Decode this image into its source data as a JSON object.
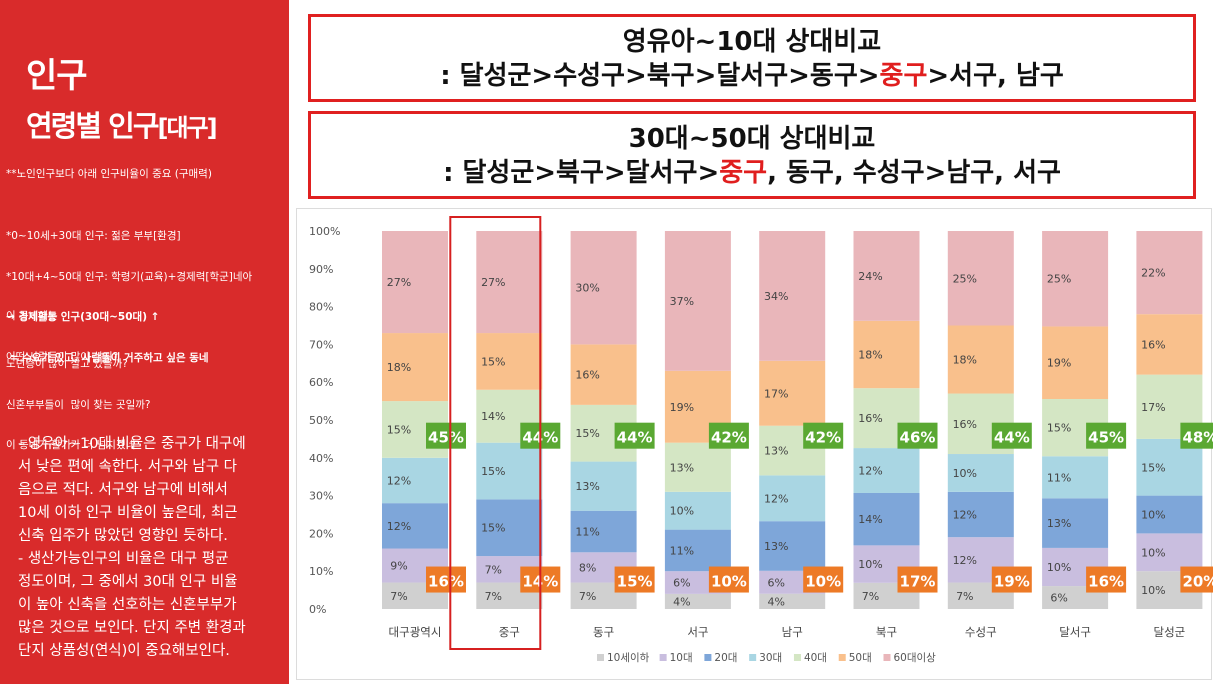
{
  "left_panel": {
    "title": "인구",
    "subtitle": "연령별 인구",
    "subtitle_bracket": "[대구]",
    "note_main": "**노인인구보다 아래 인구비율이 중요 (구매력)",
    "note_group1": [
      "*0~10세+30대 인구: 젊은 부부[환경]",
      "*10대+4~50대 인구: 학령기(교육)+경제력[학군]네아",
      "→ 경제활동 인구(30대~50대) ↑",
      " = 수요가 있고, 사람들이 거주하고 싶은 동네"
    ],
    "note_group2": [
      "이 동네에는",
      "어떤 사람들이 많이 살지?"
    ],
    "note_group3": [
      "노년층이 많이 살고 있을까?",
      "신혼부부들이  많이 찾는 곳일까?",
      "이 동네가 활기가 더 넘치겠네"
    ],
    "summary": [
      " - 영유아~10대 비율은 중구가 대구에",
      "서 낮은 편에 속한다. 서구와 남구 다",
      "음으로 적다. 서구와 남구에 비해서",
      "10세 이하 인구 비율이 높은데, 최근",
      "신축 입주가 많았던 영향인 듯하다.",
      " - 생산가능인구의 비율은 대구 평균",
      "정도이며, 그 중에서 30대 인구 비율",
      "이 높아 신축을 선호하는 신혼부부가",
      "많은 것으로 보인다. 단지 주변 환경과",
      "단지 상품성(연식)이 중요해보인다."
    ]
  },
  "comparisons": [
    {
      "line1": "영유아~10대 상대비교",
      "line2_before": ": 달성군>수성구>북구>달서구>동구>",
      "line2_highlight": "중구",
      "line2_after": ">서구, 남구"
    },
    {
      "line1": "30대~50대 상대비교",
      "line2_before": ": 달성군>북구>달서구>",
      "line2_highlight": "중구",
      "line2_after": ", 동구, 수성구>남구, 서구"
    }
  ],
  "colors": {
    "panel_red": "#d92b2b",
    "highlight_red": "#e01e1e",
    "badge_green": "#5aa832",
    "badge_orange": "#ed7a26"
  },
  "chart_data": {
    "type": "bar",
    "stacked": true,
    "normalized": true,
    "categories": [
      "대구광역시",
      "중구",
      "동구",
      "서구",
      "남구",
      "북구",
      "수성구",
      "달서구",
      "달성군"
    ],
    "series": [
      {
        "name": "10세이하",
        "color": "#d0d0d0",
        "values": [
          7,
          7,
          7,
          4,
          4,
          7,
          7,
          6,
          10
        ]
      },
      {
        "name": "10대",
        "color": "#c9bedf",
        "values": [
          9,
          7,
          8,
          6,
          6,
          10,
          12,
          10,
          10
        ]
      },
      {
        "name": "20대",
        "color": "#7ea6d9",
        "values": [
          12,
          15,
          11,
          11,
          13,
          14,
          12,
          13,
          10
        ]
      },
      {
        "name": "30대",
        "color": "#a9d6e3",
        "values": [
          12,
          15,
          13,
          10,
          12,
          12,
          10,
          11,
          15
        ]
      },
      {
        "name": "40대",
        "color": "#d4e6c4",
        "values": [
          15,
          14,
          15,
          13,
          13,
          16,
          16,
          15,
          17
        ]
      },
      {
        "name": "50대",
        "color": "#f9c08c",
        "values": [
          18,
          15,
          16,
          19,
          17,
          18,
          18,
          19,
          16
        ]
      },
      {
        "name": "60대이상",
        "color": "#e9b6ba",
        "values": [
          27,
          27,
          30,
          37,
          34,
          24,
          25,
          25,
          22
        ]
      }
    ],
    "segment_labels": [
      [
        "7%",
        "9%",
        "12%",
        "12%",
        "15%",
        "18%",
        "27%"
      ],
      [
        "7%",
        "7%",
        "15%",
        "15%",
        "14%",
        "15%",
        "27%"
      ],
      [
        "7%",
        "8%",
        "11%",
        "13%",
        "15%",
        "16%",
        "30%"
      ],
      [
        "4%",
        "6%",
        "11%",
        "10%",
        "13%",
        "19%",
        "37%"
      ],
      [
        "4%",
        "6%",
        "13%",
        "12%",
        "13%",
        "17%",
        "34%"
      ],
      [
        "7%",
        "10%",
        "14%",
        "12%",
        "16%",
        "18%",
        "24%"
      ],
      [
        "7%",
        "12%",
        "12%",
        "10%",
        "16%",
        "18%",
        "25%"
      ],
      [
        "6%",
        "10%",
        "13%",
        "11%",
        "15%",
        "19%",
        "25%"
      ],
      [
        "10%",
        "10%",
        "10%",
        "15%",
        "17%",
        "16%",
        "22%"
      ]
    ],
    "green_badges": [
      "45%",
      "44%",
      "44%",
      "42%",
      "42%",
      "46%",
      "44%",
      "45%",
      "48%"
    ],
    "orange_badges": [
      "16%",
      "14%",
      "15%",
      "10%",
      "10%",
      "17%",
      "19%",
      "16%",
      "20%"
    ],
    "y_ticks": [
      "0%",
      "10%",
      "20%",
      "30%",
      "40%",
      "50%",
      "60%",
      "70%",
      "80%",
      "90%",
      "100%"
    ],
    "ylim": [
      0,
      100
    ],
    "highlighted_category": "중구",
    "legend_position": "bottom"
  }
}
